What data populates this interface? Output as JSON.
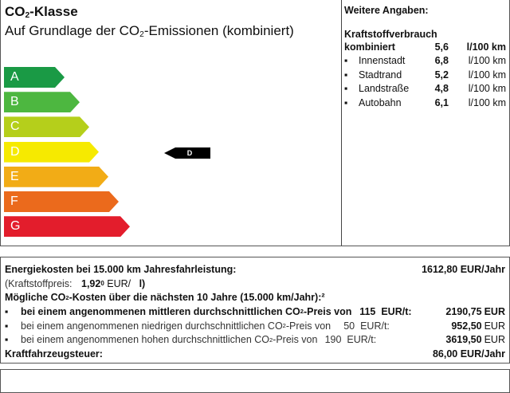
{
  "label": {
    "title_pre": "CO",
    "title_sub": "2",
    "title_post": "-Klasse",
    "subtitle_pre": "Auf Grundlage der CO",
    "subtitle_sub": "2",
    "subtitle_post": "-Emissionen (kombiniert)",
    "classes": [
      {
        "letter": "A",
        "color": "#1a9a45"
      },
      {
        "letter": "B",
        "color": "#4db740"
      },
      {
        "letter": "C",
        "color": "#b5cf1b"
      },
      {
        "letter": "D",
        "color": "#f6ea00"
      },
      {
        "letter": "E",
        "color": "#f2ac16"
      },
      {
        "letter": "F",
        "color": "#eb6a1c"
      },
      {
        "letter": "G",
        "color": "#e31d2c"
      }
    ],
    "current_class": "D"
  },
  "details": {
    "heading": "Weitere Angaben:",
    "consumption_heading": "Kraftstoffverbrauch",
    "combined": {
      "label": "kombiniert",
      "value": "5,6",
      "unit": "l/100 km"
    },
    "items": [
      {
        "label": "Innenstadt",
        "value": "6,8",
        "unit": "l/100 km"
      },
      {
        "label": "Stadtrand",
        "value": "5,2",
        "unit": "l/100 km"
      },
      {
        "label": "Landstraße",
        "value": "4,8",
        "unit": "l/100 km"
      },
      {
        "label": "Autobahn",
        "value": "6,1",
        "unit": "l/100 km"
      }
    ]
  },
  "costs": {
    "energy_label": "Energiekosten bei 15.000 km Jahresfahrleistung:",
    "energy_value": "1612,80 EUR/Jahr",
    "fuel_price_label": "(Kraftstoffpreis:",
    "fuel_price_value": "1,92",
    "fuel_price_sup": "0",
    "fuel_price_unit": "EUR/",
    "fuel_price_unit2": "l)",
    "co2_heading_pre": "Mögliche CO",
    "co2_heading_sub": "2",
    "co2_heading_post": "-Kosten über die nächsten 10 Jahre (15.000 km/Jahr):²",
    "scenarios": [
      {
        "text_pre": "bei einem angenommenen mittleren durchschnittlichen CO",
        "text_post": "-Preis von",
        "price": "115",
        "unit": "EUR/t:",
        "value": "2190,75",
        "currency": "EUR"
      },
      {
        "text_pre": "bei einem angenommenen niedrigen durchschnittlichen CO",
        "text_post": "-Preis von",
        "price": "50",
        "unit": "EUR/t:",
        "value": "952,50",
        "currency": "EUR"
      },
      {
        "text_pre": "bei einem angenommenen hohen durchschnittlichen CO",
        "text_post": "-Preis von",
        "price": "190",
        "unit": "EUR/t:",
        "value": "3619,50",
        "currency": "EUR"
      }
    ],
    "co2_sub": "2",
    "tax_label": "Kraftfahrzeugsteuer:",
    "tax_value": "86,00 EUR/Jahr"
  }
}
